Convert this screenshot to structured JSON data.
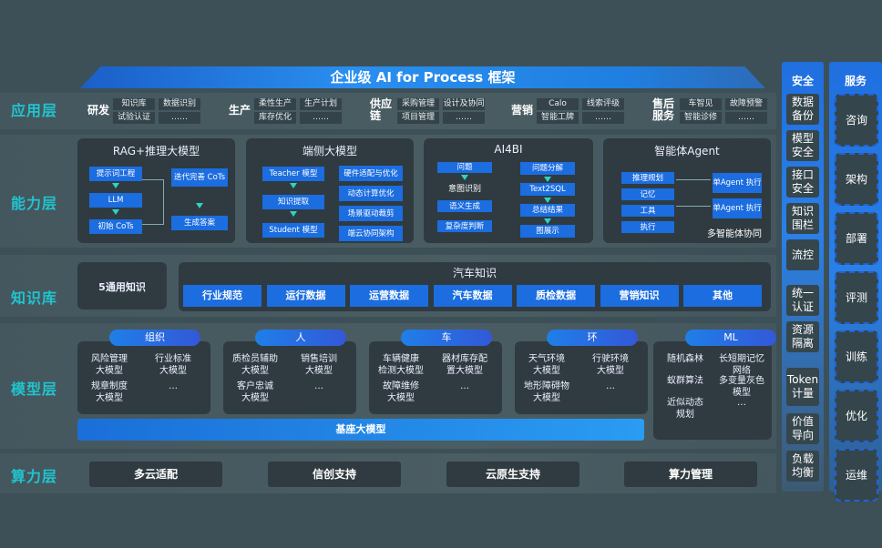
{
  "title": "企业级 AI for Process 框架",
  "layers": {
    "app": "应用层",
    "capability": "能力层",
    "knowledge": "知识库",
    "model": "模型层",
    "compute": "算力层"
  },
  "app_groups": [
    {
      "name": "研发",
      "items": [
        "知识库",
        "数据识别",
        "试验认证",
        "……"
      ]
    },
    {
      "name": "生产",
      "items": [
        "柔性生产",
        "生产计划",
        "库存优化",
        "……"
      ]
    },
    {
      "name": "供应链",
      "items": [
        "采购管理",
        "设计及协同",
        "项目管理",
        "……"
      ]
    },
    {
      "name": "营销",
      "items": [
        "Calo",
        "线索评级",
        "智能工牌",
        "……"
      ]
    },
    {
      "name": "售后服务",
      "items": [
        "车智见",
        "故障预警",
        "智能诊修",
        "……"
      ]
    }
  ],
  "capability": {
    "rag": {
      "title": "RAG+推理大模型",
      "left": [
        "提示词工程",
        "LLM",
        "初始 CoTs"
      ],
      "right": [
        "迭代完善 CoTs",
        "生成答案"
      ]
    },
    "edge": {
      "title": "端侧大模型",
      "left": [
        "Teacher 模型",
        "知识提取",
        "Student 模型"
      ],
      "right": [
        "硬件适配与优化",
        "动态计算优化",
        "场景驱动裁剪",
        "端云协同架构"
      ]
    },
    "ai4bi": {
      "title": "AI4BI",
      "left_top": "问题",
      "left_text": "意图识别",
      "left": [
        "语义生成",
        "复杂度判断"
      ],
      "right": [
        "问题分解",
        "Text2SQL",
        "总结结果",
        "图展示"
      ]
    },
    "agent": {
      "title": "智能体Agent",
      "left": [
        "推理规划",
        "记忆",
        "工具",
        "执行"
      ],
      "right": [
        "单Agent 执行",
        "单Agent 执行"
      ],
      "footer": "多智能体协同"
    }
  },
  "knowledge": {
    "general": "5通用知识",
    "auto_title": "汽车知识",
    "items": [
      "行业规范",
      "运行数据",
      "运营数据",
      "汽车数据",
      "质检数据",
      "营销知识",
      "其他"
    ]
  },
  "models": [
    {
      "tag": "组织",
      "items": [
        "风险管理 大模型",
        "行业标准 大模型",
        "规章制度 大模型",
        "…"
      ]
    },
    {
      "tag": "人",
      "items": [
        "质检员辅助 大模型",
        "销售培训 大模型",
        "客户忠诚 大模型",
        "…"
      ]
    },
    {
      "tag": "车",
      "items": [
        "车辆健康 检测大模型",
        "器材库存配 置大模型",
        "故障维修 大模型",
        "…"
      ]
    },
    {
      "tag": "环",
      "items": [
        "天气环境 大模型",
        "行驶环境 大模型",
        "地形障碍物 大模型",
        "…"
      ]
    },
    {
      "tag": "ML",
      "items": [
        "随机森林",
        "长短期记忆 网络",
        "蚁群算法",
        "多变量灰色 模型",
        "近似动态 规划",
        "…"
      ]
    }
  ],
  "foundation": "基座大模型",
  "compute": [
    "多云适配",
    "信创支持",
    "云原生支持",
    "算力管理"
  ],
  "security": {
    "title": "安全",
    "items": [
      "数据 备份",
      "模型 安全",
      "接口 安全",
      "知识 围栏",
      "流控",
      "统一 认证",
      "资源 隔离",
      "Token 计量",
      "价值 导向",
      "负载 均衡"
    ]
  },
  "service": {
    "title": "服务",
    "items": [
      "咨询",
      "架构",
      "部署",
      "评测",
      "训练",
      "优化",
      "运维"
    ]
  },
  "colors": {
    "accent": "#1b6de0",
    "layer_label": "#21c4cf",
    "background": "#3d5057",
    "card": "#2f3b41"
  }
}
